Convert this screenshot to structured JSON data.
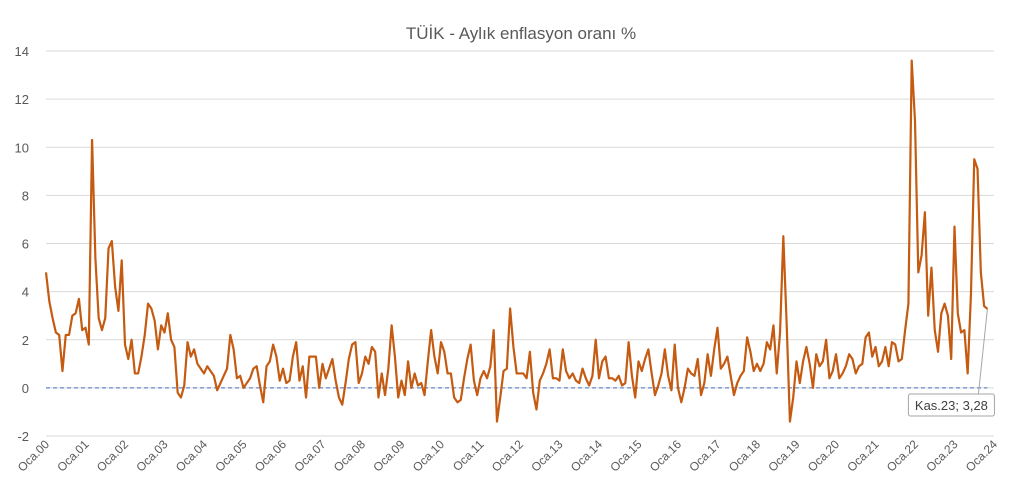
{
  "chart_data": {
    "type": "line",
    "title": "TÜİK - Aylık enflasyon oranı %",
    "xlabel": "",
    "ylabel": "",
    "ylim": [
      -2,
      14
    ],
    "yticks": [
      -2,
      0,
      2,
      4,
      6,
      8,
      10,
      12,
      14
    ],
    "grid": true,
    "x_start": "Oca.00",
    "x_end": "Kas.23",
    "xticks": [
      "Oca.00",
      "Oca.01",
      "Oca.02",
      "Oca.03",
      "Oca.04",
      "Oca.05",
      "Oca.06",
      "Oca.07",
      "Oca.08",
      "Oca.09",
      "Oca.10",
      "Oca.11",
      "Oca.12",
      "Oca.13",
      "Oca.14",
      "Oca.15",
      "Oca.16",
      "Oca.17",
      "Oca.18",
      "Oca.19",
      "Oca.20",
      "Oca.21",
      "Oca.22",
      "Oca.23",
      "Oca.24"
    ],
    "reference_line": {
      "value": 0,
      "color": "#4472c4",
      "style": "dashed"
    },
    "series": [
      {
        "color": "#c55a11",
        "frequency": "monthly",
        "values": [
          4.8,
          3.6,
          2.9,
          2.3,
          2.2,
          0.7,
          2.2,
          2.2,
          3.0,
          3.1,
          3.7,
          2.4,
          2.5,
          1.8,
          10.3,
          5.4,
          2.9,
          2.4,
          2.9,
          5.8,
          6.1,
          4.2,
          3.2,
          5.3,
          1.8,
          1.2,
          2.0,
          0.6,
          0.6,
          1.3,
          2.2,
          3.5,
          3.3,
          2.8,
          1.6,
          2.6,
          2.3,
          3.1,
          2.0,
          1.7,
          -0.2,
          -0.4,
          0.1,
          1.9,
          1.3,
          1.6,
          1.0,
          0.8,
          0.6,
          0.9,
          0.7,
          0.5,
          -0.1,
          0.2,
          0.5,
          0.8,
          2.2,
          1.6,
          0.4,
          0.5,
          0.0,
          0.2,
          0.4,
          0.8,
          0.9,
          0.1,
          -0.6,
          0.9,
          1.1,
          1.8,
          1.3,
          0.3,
          0.8,
          0.2,
          0.3,
          1.3,
          1.9,
          0.3,
          0.9,
          -0.4,
          1.3,
          1.3,
          1.3,
          0.0,
          1.0,
          0.4,
          0.8,
          1.2,
          0.3,
          -0.4,
          -0.7,
          0.2,
          1.2,
          1.8,
          1.9,
          0.2,
          0.6,
          1.3,
          1.0,
          1.7,
          1.5,
          -0.4,
          0.6,
          -0.3,
          0.8,
          2.6,
          1.3,
          -0.4,
          0.3,
          -0.3,
          1.1,
          0.0,
          0.6,
          0.1,
          0.2,
          -0.3,
          1.1,
          2.4,
          1.3,
          0.6,
          1.9,
          1.5,
          0.6,
          0.6,
          -0.4,
          -0.6,
          -0.5,
          0.4,
          1.2,
          1.8,
          0.3,
          -0.3,
          0.4,
          0.7,
          0.4,
          0.9,
          2.4,
          -1.4,
          -0.4,
          0.7,
          0.8,
          3.3,
          1.7,
          0.6,
          0.6,
          0.6,
          0.4,
          1.5,
          -0.2,
          -0.9,
          0.3,
          0.6,
          1.0,
          1.6,
          0.4,
          0.4,
          0.3,
          1.6,
          0.7,
          0.4,
          0.6,
          0.3,
          0.2,
          0.8,
          0.4,
          0.1,
          0.5,
          2.0,
          0.4,
          1.1,
          1.3,
          0.4,
          0.4,
          0.3,
          0.5,
          0.1,
          0.2,
          1.9,
          0.5,
          -0.4,
          1.1,
          0.7,
          1.2,
          1.6,
          0.6,
          -0.3,
          0.1,
          0.6,
          1.6,
          0.5,
          -0.1,
          1.8,
          0.0,
          -0.6,
          0.0,
          0.8,
          0.6,
          0.5,
          1.2,
          -0.3,
          0.2,
          1.4,
          0.5,
          1.6,
          2.5,
          0.8,
          1.0,
          1.3,
          0.5,
          -0.3,
          0.2,
          0.5,
          0.7,
          2.1,
          1.5,
          0.7,
          1.0,
          0.7,
          1.0,
          1.9,
          1.6,
          2.6,
          0.6,
          2.3,
          6.3,
          2.7,
          -1.4,
          -0.4,
          1.1,
          0.2,
          1.1,
          1.7,
          1.0,
          0.0,
          1.4,
          0.9,
          1.1,
          2.0,
          0.4,
          0.7,
          1.4,
          0.4,
          0.6,
          0.9,
          1.4,
          1.2,
          0.6,
          0.9,
          1.0,
          2.1,
          2.3,
          1.3,
          1.7,
          0.9,
          1.1,
          1.7,
          0.9,
          1.9,
          1.8,
          1.1,
          1.2,
          2.4,
          3.5,
          13.6,
          11.1,
          4.8,
          5.5,
          7.3,
          3.0,
          5.0,
          2.4,
          1.5,
          3.1,
          3.5,
          3.0,
          1.2,
          6.7,
          3.1,
          2.3,
          2.4,
          0.6,
          3.9,
          9.5,
          9.1,
          4.8,
          3.4,
          3.28
        ]
      }
    ],
    "annotation": {
      "text": "Kas.23; 3,28",
      "x": "Kas.23",
      "y": 3.28
    }
  }
}
